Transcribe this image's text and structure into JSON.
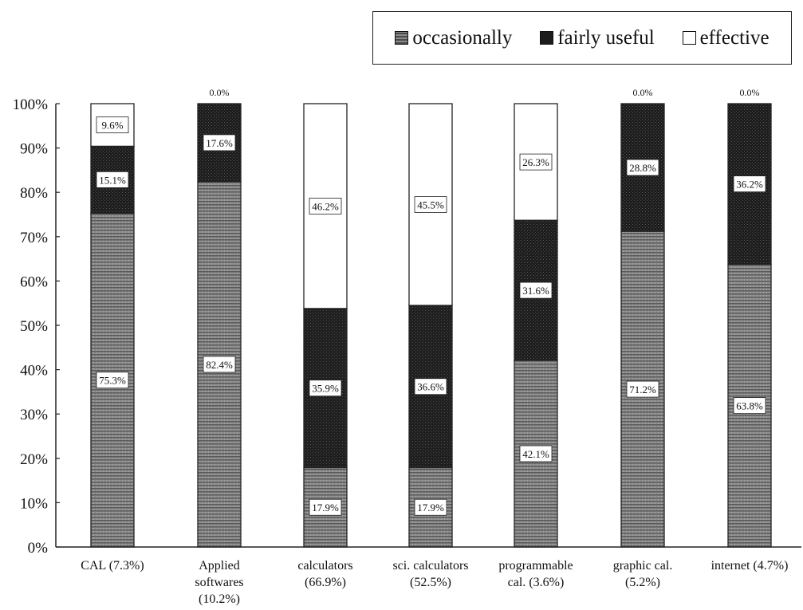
{
  "chart_data": {
    "type": "bar",
    "stacked": true,
    "categories": [
      "CAL (7.3%)",
      "Applied softwares (10.2%)",
      "calculators (66.9%)",
      "sci. calculators (52.5%)",
      "programmable cal. (3.6%)",
      "graphic cal. (5.2%)",
      "internet (4.7%)"
    ],
    "category_lines": [
      [
        "CAL (7.3%)"
      ],
      [
        "Applied",
        "softwares",
        "(10.2%)"
      ],
      [
        "calculators",
        "(66.9%)"
      ],
      [
        "sci. calculators",
        "(52.5%)"
      ],
      [
        "programmable",
        "cal. (3.6%)"
      ],
      [
        "graphic cal.",
        "(5.2%)"
      ],
      [
        "internet (4.7%)"
      ]
    ],
    "series": [
      {
        "name": "occasionally",
        "color": "#7a7a7a",
        "pattern": "stipple",
        "values": [
          75.3,
          82.4,
          17.9,
          17.9,
          42.1,
          71.2,
          63.8
        ],
        "labels": [
          "75.3%",
          "82.4%",
          "17.9%",
          "17.9%",
          "42.1%",
          "71.2%",
          "63.8%"
        ]
      },
      {
        "name": "fairly useful",
        "color": "#1c1c1c",
        "pattern": "dark",
        "values": [
          15.1,
          17.6,
          35.9,
          36.6,
          31.6,
          28.8,
          36.2
        ],
        "labels": [
          "15.1%",
          "17.6%",
          "35.9%",
          "36.6%",
          "31.6%",
          "28.8%",
          "36.2%"
        ]
      },
      {
        "name": "effective",
        "color": "#ffffff",
        "pattern": "white",
        "values": [
          9.6,
          0.0,
          46.2,
          45.5,
          26.3,
          0.0,
          0.0
        ],
        "labels": [
          "9.6%",
          "0.0%",
          "46.2%",
          "45.5%",
          "26.3%",
          "0.0%",
          "0.0%"
        ]
      }
    ],
    "yticks": [
      "0%",
      "10%",
      "20%",
      "30%",
      "40%",
      "50%",
      "60%",
      "70%",
      "80%",
      "90%",
      "100%"
    ],
    "ylim": [
      0,
      100
    ],
    "xlabel": "",
    "ylabel": "",
    "title": "",
    "legend_position": "top-right",
    "grid": false
  }
}
